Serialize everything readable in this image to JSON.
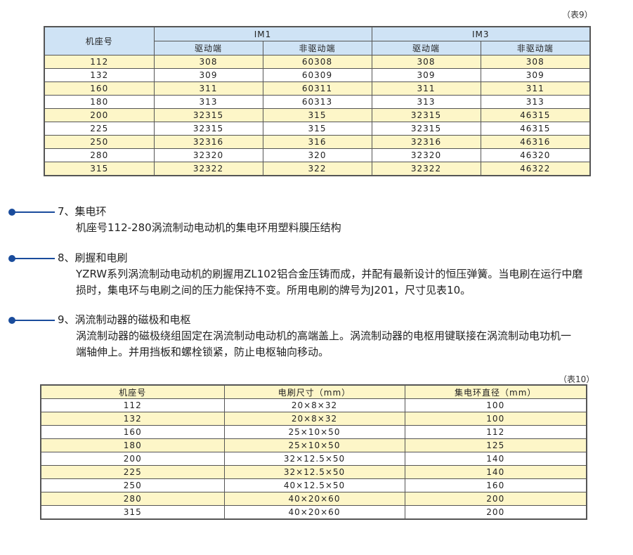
{
  "table9": {
    "caption": "（表9）",
    "header": {
      "frame": "机座号",
      "im1": "IM1",
      "im3": "IM3",
      "drive_end": "驱动端",
      "non_drive_end": "非驱动端"
    },
    "rows": [
      [
        "112",
        "308",
        "60308",
        "308",
        "308"
      ],
      [
        "132",
        "309",
        "60309",
        "309",
        "309"
      ],
      [
        "160",
        "311",
        "60311",
        "311",
        "311"
      ],
      [
        "180",
        "313",
        "60313",
        "313",
        "313"
      ],
      [
        "200",
        "32315",
        "315",
        "32315",
        "46315"
      ],
      [
        "225",
        "32315",
        "315",
        "32315",
        "46315"
      ],
      [
        "250",
        "32316",
        "316",
        "32316",
        "46316"
      ],
      [
        "280",
        "32320",
        "320",
        "32320",
        "46320"
      ],
      [
        "315",
        "32322",
        "322",
        "32322",
        "46322"
      ]
    ],
    "row_colors": [
      "#fdf6c8",
      "#ffffff"
    ],
    "header_color": "#cfe3f5"
  },
  "sections": [
    {
      "title": "7、集电环",
      "lines": [
        "机座号112-280涡流制动电动机的集电环用塑料膜压结构"
      ]
    },
    {
      "title": "8、刷握和电刷",
      "lines": [
        "YZRW系列涡流制动电动机的刷握用ZL102铝合金压铸而成，并配有最新设计的恒压弹簧。当电刷在运行中磨",
        "损时，集电环与电刷之间的压力能保持不变。所用电刷的牌号为J201，尺寸见表10。"
      ]
    },
    {
      "title": "9、涡流制动器的磁极和电枢",
      "lines": [
        "涡流制动器的磁极绕组固定在涡流制动电动机的高端盖上。涡流制动器的电枢用键联接在涡流制动电功机一",
        "端轴伸上。并用挡板和螺栓锁紧，防止电枢轴向移动。"
      ]
    }
  ],
  "table10": {
    "caption": "（表10）",
    "header": [
      "机座号",
      "电刷尺寸（mm）",
      "集电环直径（mm）"
    ],
    "rows": [
      [
        "112",
        "20×8×32",
        "100"
      ],
      [
        "132",
        "20×8×32",
        "100"
      ],
      [
        "160",
        "25×10×50",
        "112"
      ],
      [
        "180",
        "25×10×50",
        "125"
      ],
      [
        "200",
        "32×12.5×50",
        "140"
      ],
      [
        "225",
        "32×12.5×50",
        "140"
      ],
      [
        "250",
        "40×12.5×50",
        "160"
      ],
      [
        "280",
        "40×20×60",
        "200"
      ],
      [
        "315",
        "40×20×60",
        "200"
      ]
    ],
    "accent": "#1a4c9c"
  }
}
